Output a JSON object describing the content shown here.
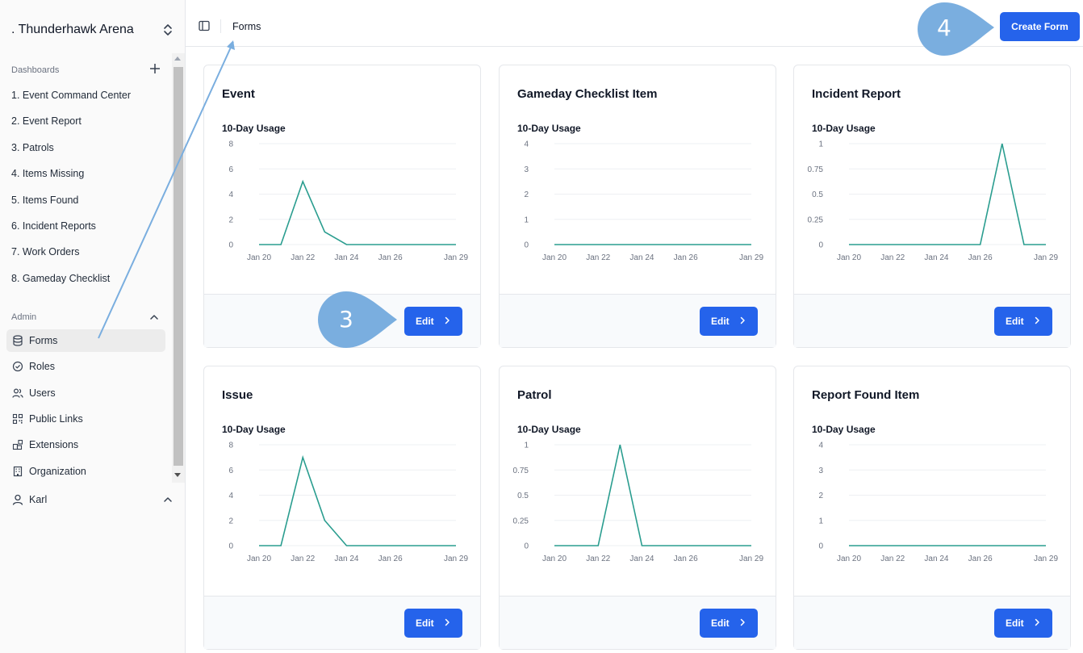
{
  "org": {
    "name": ". Thunderhawk Arena"
  },
  "sidebar": {
    "dashboards_label": "Dashboards",
    "dashboards": [
      "1. Event Command Center",
      "2. Event Report",
      "3. Patrols",
      "4. Items Missing",
      "5. Items Found",
      "6. Incident Reports",
      "7. Work Orders",
      "8. Gameday Checklist"
    ],
    "admin_label": "Admin",
    "admin_items": [
      {
        "label": "Forms",
        "icon": "database-icon",
        "active": true
      },
      {
        "label": "Roles",
        "icon": "check-circle-icon"
      },
      {
        "label": "Users",
        "icon": "users-icon"
      },
      {
        "label": "Public Links",
        "icon": "qr-code-icon"
      },
      {
        "label": "Extensions",
        "icon": "blocks-icon"
      },
      {
        "label": "Organization",
        "icon": "building-icon"
      }
    ],
    "user": {
      "name": "Karl",
      "icon": "user-icon"
    }
  },
  "header": {
    "breadcrumb": "Forms",
    "create_label": "Create Form"
  },
  "forms": [
    {
      "title": "Event",
      "usage_label": "10-Day Usage",
      "edit_label": "Edit"
    },
    {
      "title": "Gameday Checklist Item",
      "usage_label": "10-Day Usage",
      "edit_label": "Edit"
    },
    {
      "title": "Incident Report",
      "usage_label": "10-Day Usage",
      "edit_label": "Edit"
    },
    {
      "title": "Issue",
      "usage_label": "10-Day Usage",
      "edit_label": "Edit"
    },
    {
      "title": "Patrol",
      "usage_label": "10-Day Usage",
      "edit_label": "Edit"
    },
    {
      "title": "Report Found Item",
      "usage_label": "10-Day Usage",
      "edit_label": "Edit"
    }
  ],
  "chart_data": [
    {
      "type": "line",
      "x": [
        "Jan 20",
        "Jan 21",
        "Jan 22",
        "Jan 23",
        "Jan 24",
        "Jan 25",
        "Jan 26",
        "Jan 27",
        "Jan 28",
        "Jan 29"
      ],
      "x_ticks": [
        "Jan 20",
        "Jan 22",
        "Jan 24",
        "Jan 26",
        "Jan 29"
      ],
      "y_ticks": [
        "0",
        "2",
        "4",
        "6",
        "8"
      ],
      "ylim": [
        0,
        8
      ],
      "values": [
        0,
        0,
        5,
        1,
        0,
        0,
        0,
        0,
        0,
        0
      ],
      "color": "#2a9d8f"
    },
    {
      "type": "line",
      "x": [
        "Jan 20",
        "Jan 21",
        "Jan 22",
        "Jan 23",
        "Jan 24",
        "Jan 25",
        "Jan 26",
        "Jan 27",
        "Jan 28",
        "Jan 29"
      ],
      "x_ticks": [
        "Jan 20",
        "Jan 22",
        "Jan 24",
        "Jan 26",
        "Jan 29"
      ],
      "y_ticks": [
        "0",
        "1",
        "2",
        "3",
        "4"
      ],
      "ylim": [
        0,
        4
      ],
      "values": [
        0,
        0,
        0,
        0,
        0,
        0,
        0,
        0,
        0,
        0
      ],
      "color": "#2a9d8f"
    },
    {
      "type": "line",
      "x": [
        "Jan 20",
        "Jan 21",
        "Jan 22",
        "Jan 23",
        "Jan 24",
        "Jan 25",
        "Jan 26",
        "Jan 27",
        "Jan 28",
        "Jan 29"
      ],
      "x_ticks": [
        "Jan 20",
        "Jan 22",
        "Jan 24",
        "Jan 26",
        "Jan 29"
      ],
      "y_ticks": [
        "0",
        "0.25",
        "0.5",
        "0.75",
        "1"
      ],
      "ylim": [
        0,
        1
      ],
      "values": [
        0,
        0,
        0,
        0,
        0,
        0,
        0,
        1,
        0,
        0
      ],
      "color": "#2a9d8f"
    },
    {
      "type": "line",
      "x": [
        "Jan 20",
        "Jan 21",
        "Jan 22",
        "Jan 23",
        "Jan 24",
        "Jan 25",
        "Jan 26",
        "Jan 27",
        "Jan 28",
        "Jan 29"
      ],
      "x_ticks": [
        "Jan 20",
        "Jan 22",
        "Jan 24",
        "Jan 26",
        "Jan 29"
      ],
      "y_ticks": [
        "0",
        "2",
        "4",
        "6",
        "8"
      ],
      "ylim": [
        0,
        8
      ],
      "values": [
        0,
        0,
        7,
        2,
        0,
        0,
        0,
        0,
        0,
        0
      ],
      "color": "#2a9d8f"
    },
    {
      "type": "line",
      "x": [
        "Jan 20",
        "Jan 21",
        "Jan 22",
        "Jan 23",
        "Jan 24",
        "Jan 25",
        "Jan 26",
        "Jan 27",
        "Jan 28",
        "Jan 29"
      ],
      "x_ticks": [
        "Jan 20",
        "Jan 22",
        "Jan 24",
        "Jan 26",
        "Jan 29"
      ],
      "y_ticks": [
        "0",
        "0.25",
        "0.5",
        "0.75",
        "1"
      ],
      "ylim": [
        0,
        1
      ],
      "values": [
        0,
        0,
        0,
        1,
        0,
        0,
        0,
        0,
        0,
        0
      ],
      "color": "#2a9d8f"
    },
    {
      "type": "line",
      "x": [
        "Jan 20",
        "Jan 21",
        "Jan 22",
        "Jan 23",
        "Jan 24",
        "Jan 25",
        "Jan 26",
        "Jan 27",
        "Jan 28",
        "Jan 29"
      ],
      "x_ticks": [
        "Jan 20",
        "Jan 22",
        "Jan 24",
        "Jan 26",
        "Jan 29"
      ],
      "y_ticks": [
        "0",
        "1",
        "2",
        "3",
        "4"
      ],
      "ylim": [
        0,
        4
      ],
      "values": [
        0,
        0,
        0,
        0,
        0,
        0,
        0,
        0,
        0,
        0
      ],
      "color": "#2a9d8f"
    }
  ],
  "callouts": [
    {
      "number": "3",
      "color": "#7aaedf"
    },
    {
      "number": "4",
      "color": "#7aaedf"
    }
  ]
}
